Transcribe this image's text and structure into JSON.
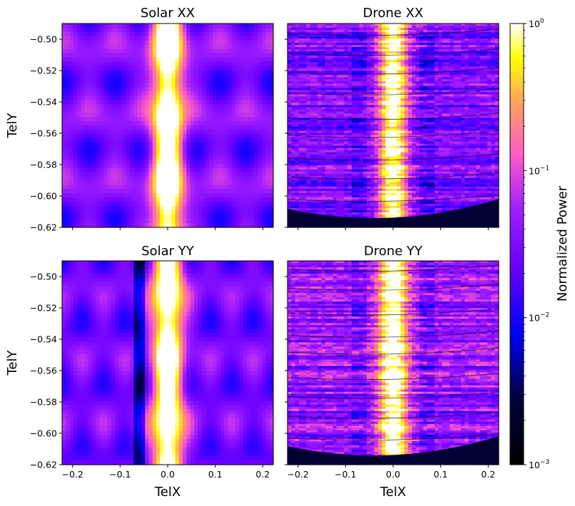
{
  "chart_data": {
    "type": "heatmap",
    "scale": "log",
    "panels": [
      {
        "title": "Solar XX",
        "kind": "solar",
        "pol": "XX"
      },
      {
        "title": "Drone XX",
        "kind": "drone",
        "pol": "XX"
      },
      {
        "title": "Solar YY",
        "kind": "solar",
        "pol": "YY"
      },
      {
        "title": "Drone YY",
        "kind": "drone",
        "pol": "YY"
      }
    ],
    "xlabel": "TelX",
    "ylabel": "TelY",
    "xlim": [
      -0.222,
      0.222
    ],
    "ylim": [
      -0.62,
      -0.49
    ],
    "xticks": [
      -0.2,
      -0.1,
      0.0,
      0.1,
      0.2
    ],
    "xtick_labels": [
      "−0.2",
      "−0.1",
      "0.0",
      "0.1",
      "0.2"
    ],
    "yticks": [
      -0.5,
      -0.52,
      -0.54,
      -0.56,
      -0.58,
      -0.6,
      -0.62
    ],
    "ytick_labels": [
      "−0.50",
      "−0.52",
      "−0.54",
      "−0.56",
      "−0.58",
      "−0.60",
      "−0.62"
    ],
    "colorbar": {
      "label": "Normalized Power",
      "cmap": "gnuplot2",
      "range": [
        0.001,
        1
      ],
      "ticks": [
        {
          "value": 1,
          "base": "10",
          "exp": "0"
        },
        {
          "value": 0.1,
          "base": "10",
          "exp": "−1"
        },
        {
          "value": 0.01,
          "base": "10",
          "exp": "−2"
        },
        {
          "value": 0.001,
          "base": "10",
          "exp": "−3"
        }
      ]
    }
  }
}
